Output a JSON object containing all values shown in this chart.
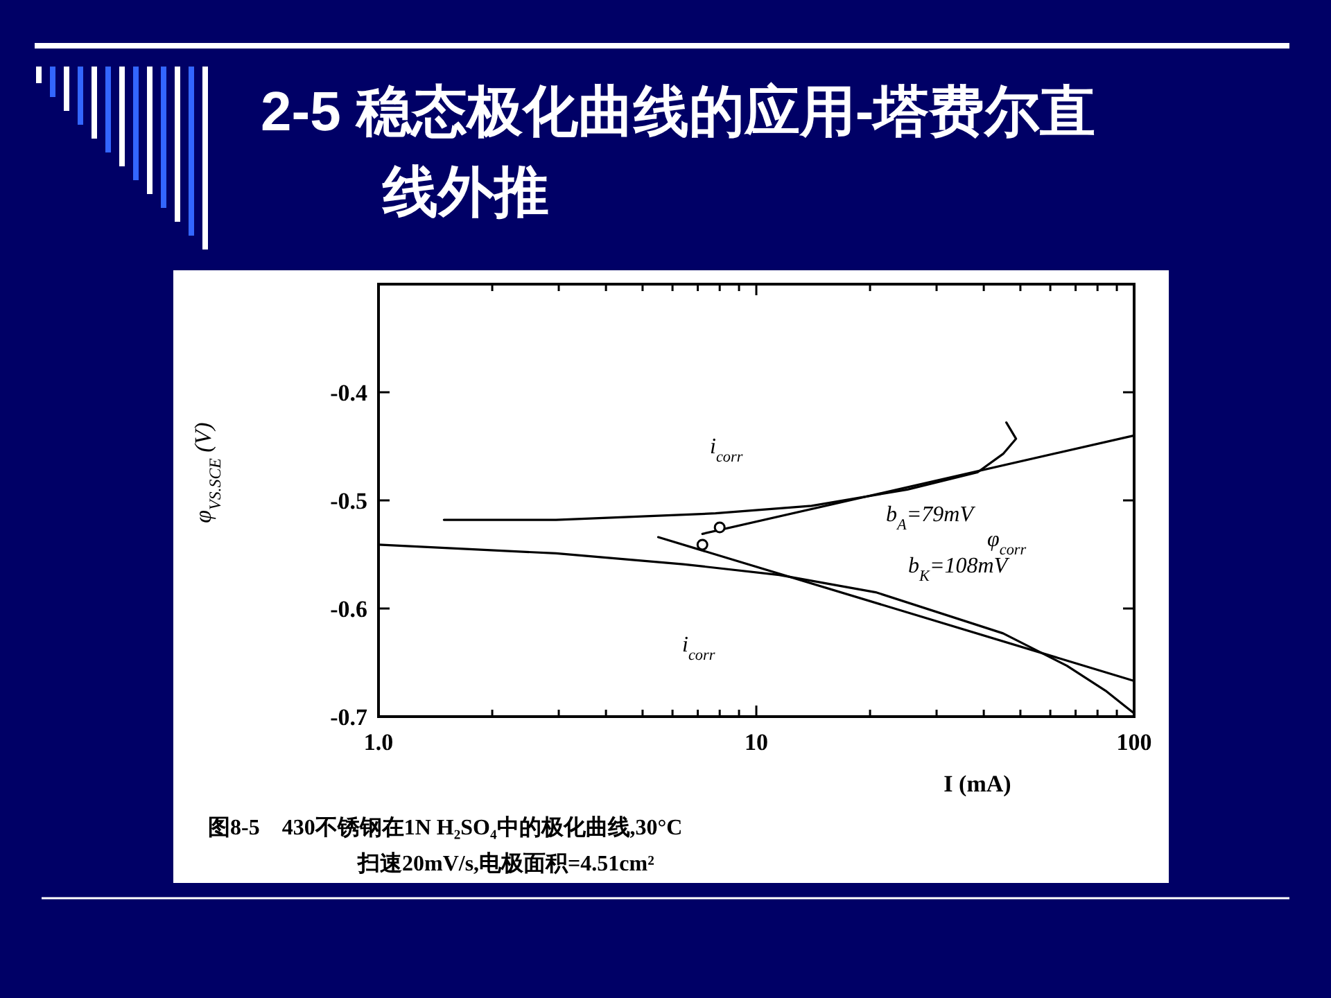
{
  "chart_data": {
    "type": "line",
    "title": "2-5 稳态极化曲线的应用-塔费尔直线外推",
    "xlabel": "I (mA)",
    "ylabel": "φ$_{VS.SCE}$ (V)",
    "log": "x",
    "xlim": [
      1,
      100
    ],
    "ylim": [
      -0.7,
      -0.3
    ],
    "xticks": [
      {
        "value": 1,
        "label": "1.0"
      },
      {
        "value": 2,
        "label": null
      },
      {
        "value": 3,
        "label": null
      },
      {
        "value": 4,
        "label": null
      },
      {
        "value": 5,
        "label": null
      },
      {
        "value": 6,
        "label": null
      },
      {
        "value": 7,
        "label": null
      },
      {
        "value": 8,
        "label": null
      },
      {
        "value": 9,
        "label": null
      },
      10,
      {
        "value": 20,
        "label": null
      },
      {
        "value": 30,
        "label": null
      },
      {
        "value": 40,
        "label": null
      },
      {
        "value": 50,
        "label": null
      },
      {
        "value": 60,
        "label": null
      },
      {
        "value": 70,
        "label": null
      },
      {
        "value": 80,
        "label": null
      },
      {
        "value": 90,
        "label": null
      },
      100
    ],
    "yticks": [
      -0.4,
      -0.5,
      -0.6,
      -0.7
    ],
    "series": [
      {
        "type": "line",
        "color": "#000000",
        "x": [
          1.49,
          2.95,
          7.8,
          14.0,
          25.1,
          38.5,
          45,
          48.7,
          45.9
        ],
        "values": [
          -0.518,
          -0.518,
          -0.512,
          -0.505,
          -0.49,
          -0.474,
          -0.457,
          -0.443,
          -0.428
        ]
      },
      {
        "type": "line",
        "color": "#000000",
        "x": [
          7.2,
          100
        ],
        "values": [
          -0.531,
          -0.44
        ]
      },
      {
        "type": "line",
        "color": "#000000",
        "x": [
          1,
          2.95,
          6.4,
          11.5,
          20.7,
          45,
          66.4,
          84,
          100
        ],
        "values": [
          -0.541,
          -0.549,
          -0.559,
          -0.569,
          -0.585,
          -0.623,
          -0.653,
          -0.676,
          -0.697
        ]
      },
      {
        "type": "line",
        "color": "#000000",
        "x": [
          5.5,
          100
        ],
        "values": [
          -0.534,
          -0.667
        ]
      },
      {
        "type": "scatter",
        "color": "#000000",
        "marker": "circle",
        "x": [
          8.0,
          7.2
        ],
        "values": [
          -0.525,
          -0.541
        ]
      }
    ],
    "annotations": [
      "i$_{corr}$",
      "i$_{corr}$",
      "b$_{A}$=79mV",
      "b$_{K}$=108mV",
      "φ$_{corr}$",
      "图8-5　430不锈钢在1N H₂SO₄中的极化曲线,30°C",
      "扫速20mV/s,电极面积=4.51cm²"
    ]
  }
}
